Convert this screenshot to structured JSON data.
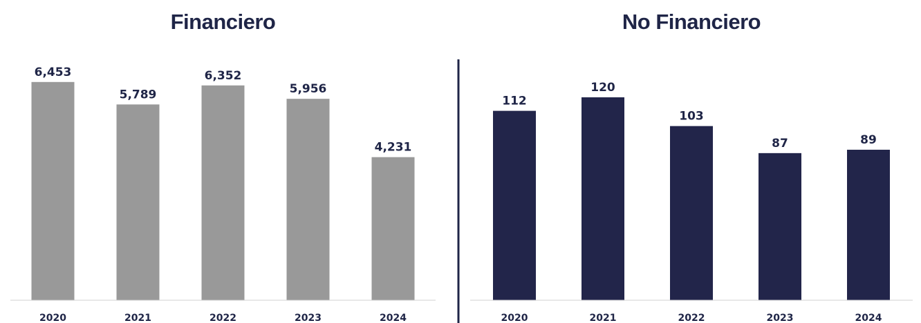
{
  "chart_data": [
    {
      "type": "bar",
      "title": "Financiero",
      "categories": [
        "2020",
        "2021",
        "2022",
        "2023",
        "2024"
      ],
      "values": [
        6453,
        5789,
        6352,
        5956,
        4231
      ],
      "value_labels": [
        "6,453",
        "5,789",
        "6,352",
        "5,956",
        "4,231"
      ],
      "color": "#999999",
      "ylim": [
        0,
        7000
      ]
    },
    {
      "type": "bar",
      "title": "No Financiero",
      "categories": [
        "2020",
        "2021",
        "2022",
        "2023",
        "2024"
      ],
      "values": [
        112,
        120,
        103,
        87,
        89
      ],
      "color": "#22254a",
      "ylim": [
        0,
        140
      ]
    }
  ]
}
